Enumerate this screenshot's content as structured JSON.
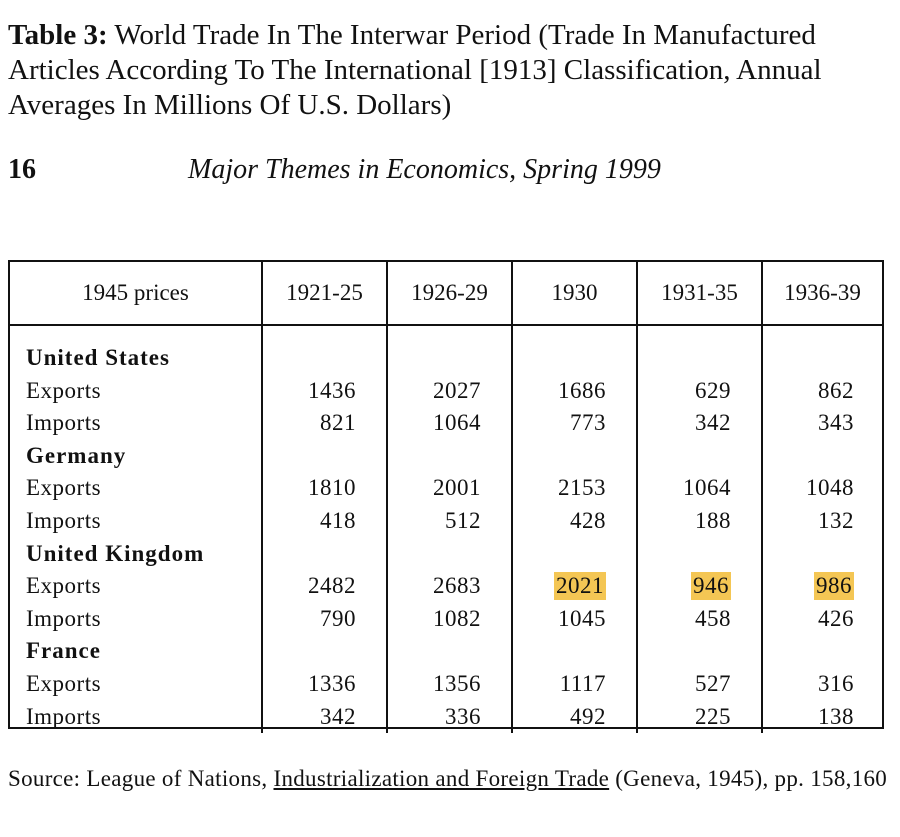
{
  "title": {
    "label": "Table 3:",
    "text": " World Trade In The Interwar Period (Trade In Manufactured Articles According To The International [1913] Classification, Annual Averages In Millions Of U.S. Dollars)"
  },
  "page_number": "16",
  "running_head": "Major Themes in Economics, Spring 1999",
  "table": {
    "stub_header": "1945 prices",
    "columns": [
      "1921-25",
      "1926-29",
      "1930",
      "1931-35",
      "1936-39"
    ],
    "highlight_color": "#f4c654",
    "groups": [
      {
        "country": "United States",
        "rows": [
          {
            "label": "Exports",
            "values": [
              "1436",
              "2027",
              "1686",
              "629",
              "862"
            ]
          },
          {
            "label": "Imports",
            "values": [
              "821",
              "1064",
              "773",
              "342",
              "343"
            ]
          }
        ]
      },
      {
        "country": "Germany",
        "rows": [
          {
            "label": "Exports",
            "values": [
              "1810",
              "2001",
              "2153",
              "1064",
              "1048"
            ]
          },
          {
            "label": "Imports",
            "values": [
              "418",
              "512",
              "428",
              "188",
              "132"
            ]
          }
        ]
      },
      {
        "country": "United Kingdom",
        "rows": [
          {
            "label": "Exports",
            "values": [
              "2482",
              "2683",
              "2021",
              "946",
              "986"
            ],
            "highlighted": [
              "1930",
              "1931-35",
              "1936-39"
            ]
          },
          {
            "label": "Imports",
            "values": [
              "790",
              "1082",
              "1045",
              "458",
              "426"
            ]
          }
        ]
      },
      {
        "country": "France",
        "rows": [
          {
            "label": "Exports",
            "values": [
              "1336",
              "1356",
              "1117",
              "527",
              "316"
            ]
          },
          {
            "label": "Imports",
            "values": [
              "342",
              "336",
              "492",
              "225",
              "138"
            ]
          }
        ]
      }
    ]
  },
  "source": {
    "prefix": "Source: League of Nations, ",
    "work": "Industrialization and Foreign Trade",
    "suffix": " (Geneva, 1945), pp. 158,160"
  }
}
